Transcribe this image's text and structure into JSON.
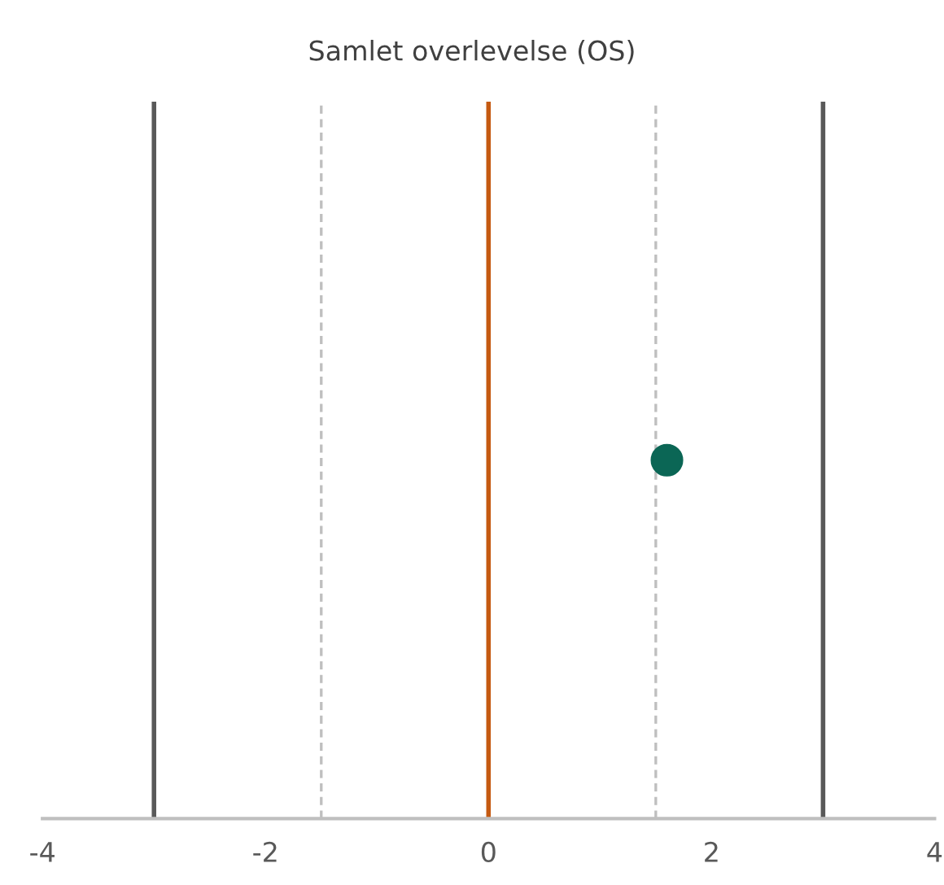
{
  "chart_data": {
    "type": "scatter",
    "title": "Samlet overlevelse (OS)",
    "orientation": "horizontal",
    "categories": [
      null
    ],
    "series": [
      {
        "color": "#0b6655",
        "values": [
          1.6
        ]
      }
    ],
    "marker": "circle",
    "xlim": [
      -4,
      4
    ],
    "xticks": [
      -4,
      -2,
      0,
      2,
      4
    ],
    "ref_lines": [
      {
        "axis": "x",
        "value": -3,
        "color": "#595959",
        "line_style": "solid"
      },
      {
        "axis": "x",
        "value": -1.5,
        "color": "#bfbfbf",
        "line_style": "dashed"
      },
      {
        "axis": "x",
        "value": 0,
        "color": "#c55a11",
        "line_style": "solid"
      },
      {
        "axis": "x",
        "value": 1.5,
        "color": "#bfbfbf",
        "line_style": "dashed"
      },
      {
        "axis": "x",
        "value": 3,
        "color": "#595959",
        "line_style": "solid"
      }
    ],
    "grid": false,
    "legend": false
  }
}
